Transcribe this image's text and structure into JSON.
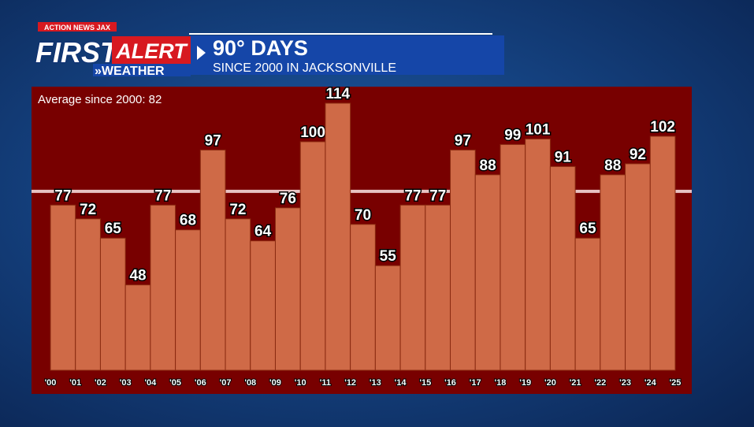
{
  "chart_data": {
    "type": "bar",
    "logo": {
      "network": "ACTION NEWS JAX",
      "first": "FIRST",
      "alert": "ALERT",
      "weather": "»WEATHER"
    },
    "title": "90° DAYS",
    "subtitle": "SINCE 2000 IN JACKSONVILLE",
    "average": 82,
    "average_label": "Average since 2000: 82",
    "categories": [
      "'00",
      "'01",
      "'02",
      "'03",
      "'04",
      "'05",
      "'06",
      "'07",
      "'08",
      "'09",
      "'10",
      "'11",
      "'12",
      "'13",
      "'14",
      "'15",
      "'16",
      "'17",
      "'18",
      "'19",
      "'20",
      "'21",
      "'22",
      "'23",
      "'24",
      "'25"
    ],
    "values": [
      77,
      72,
      65,
      48,
      77,
      68,
      97,
      72,
      64,
      76,
      100,
      114,
      70,
      55,
      77,
      77,
      97,
      88,
      99,
      101,
      91,
      65,
      88,
      92,
      102,
      null
    ],
    "color": "#cf6a47",
    "ylim": [
      17,
      120
    ]
  }
}
